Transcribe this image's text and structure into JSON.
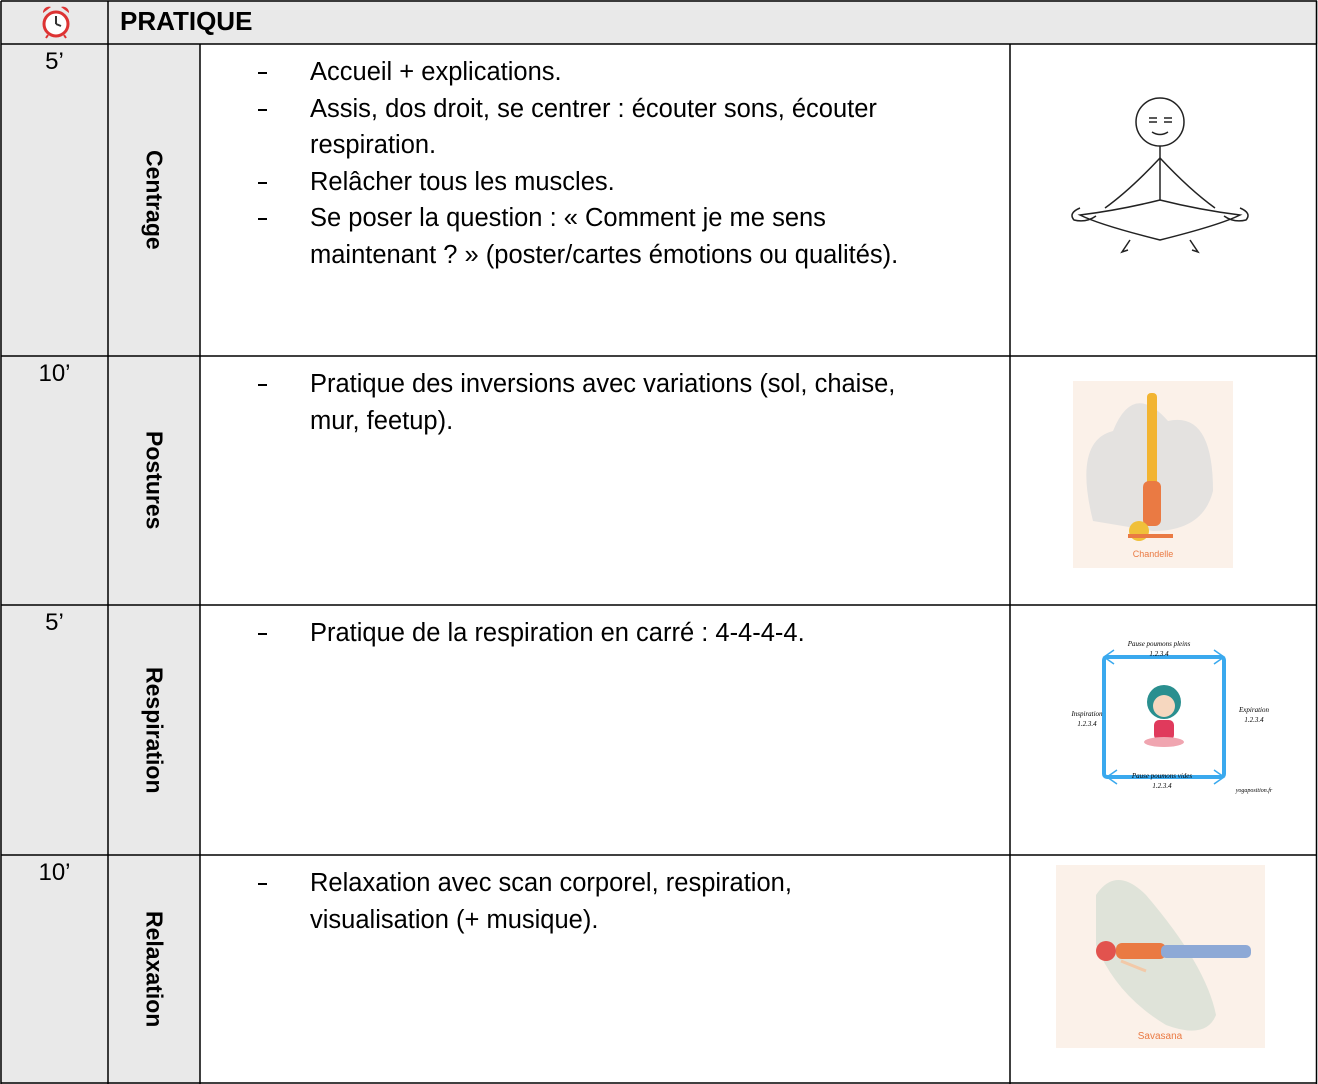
{
  "header": {
    "title": "PRATIQUE"
  },
  "rows": [
    {
      "duration": "5’",
      "section": "Centrage",
      "items": [
        "Accueil + explications.",
        "Assis, dos droit, se centrer : écouter sons, écouter respiration.",
        "Relâcher tous les muscles.",
        "Se poser la question : « Comment je me sens maintenant ? » (poster/cartes émotions ou qualités)."
      ]
    },
    {
      "duration": "10’",
      "section": "Postures",
      "items": [
        "Pratique des inversions avec variations (sol, chaise, mur, feetup)."
      ],
      "image_caption": "Chandelle"
    },
    {
      "duration": "5’",
      "section": "Respiration",
      "items": [
        "Pratique de la respiration en carré : 4-4-4-4."
      ],
      "image_labels": [
        "Pause poumons pleins",
        "1.2.3.4",
        "Inspiration",
        "1.2.3.4",
        "Expiration",
        "1.2.3.4",
        "Pause poumons vides",
        "1.2.3.4",
        "yogaposition.fr"
      ]
    },
    {
      "duration": "10’",
      "section": "Relaxation",
      "items": [
        "Relaxation avec scan corporel, respiration, visualisation (+ musique)."
      ],
      "image_caption": "Savasana"
    }
  ]
}
